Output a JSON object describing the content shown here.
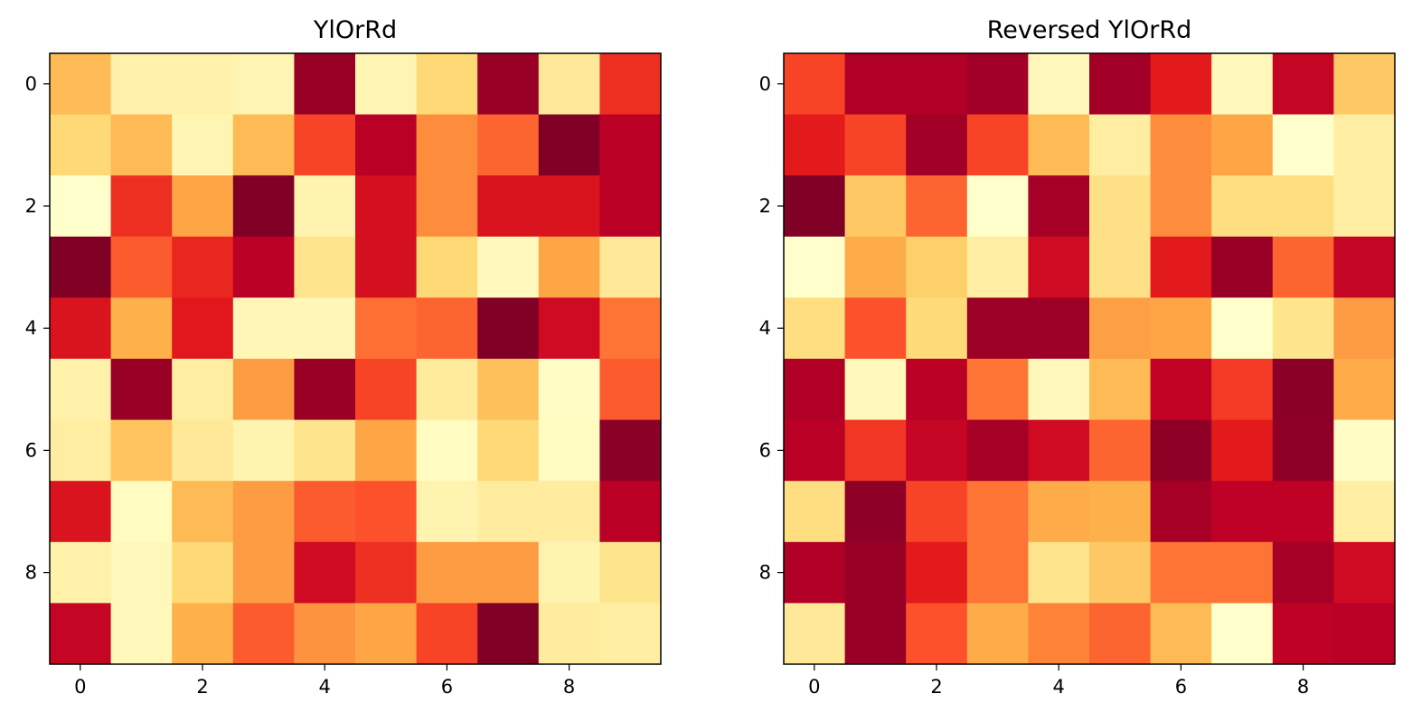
{
  "chart_data": [
    {
      "type": "heatmap",
      "title": "YlOrRd",
      "colormap": "YlOrRd",
      "xticks": [
        "0",
        "2",
        "4",
        "6",
        "8"
      ],
      "yticks": [
        "0",
        "2",
        "4",
        "6",
        "8"
      ],
      "values": [
        [
          0.35,
          0.1,
          0.1,
          0.07,
          0.95,
          0.07,
          0.25,
          0.95,
          0.15,
          0.7
        ],
        [
          0.25,
          0.35,
          0.07,
          0.35,
          0.65,
          0.88,
          0.5,
          0.58,
          1.0,
          0.88
        ],
        [
          0.0,
          0.7,
          0.42,
          1.0,
          0.08,
          0.8,
          0.5,
          0.78,
          0.78,
          0.88
        ],
        [
          1.0,
          0.6,
          0.72,
          0.88,
          0.18,
          0.8,
          0.25,
          0.05,
          0.42,
          0.15
        ],
        [
          0.78,
          0.38,
          0.76,
          0.06,
          0.06,
          0.56,
          0.58,
          1.0,
          0.82,
          0.55
        ],
        [
          0.1,
          0.95,
          0.12,
          0.45,
          0.95,
          0.65,
          0.14,
          0.33,
          0.02,
          0.6
        ],
        [
          0.12,
          0.32,
          0.15,
          0.08,
          0.18,
          0.42,
          0.03,
          0.25,
          0.03,
          0.98
        ],
        [
          0.78,
          0.03,
          0.35,
          0.45,
          0.6,
          0.62,
          0.08,
          0.13,
          0.13,
          0.88
        ],
        [
          0.1,
          0.05,
          0.25,
          0.45,
          0.82,
          0.7,
          0.45,
          0.45,
          0.08,
          0.18
        ],
        [
          0.85,
          0.05,
          0.38,
          0.6,
          0.48,
          0.42,
          0.65,
          1.0,
          0.13,
          0.12
        ]
      ]
    },
    {
      "type": "heatmap",
      "title": "Reversed YlOrRd",
      "colormap": "YlOrRd_r",
      "xticks": [
        "0",
        "2",
        "4",
        "6",
        "8"
      ],
      "yticks": [
        "0",
        "2",
        "4",
        "6",
        "8"
      ],
      "values": [
        [
          0.35,
          0.1,
          0.1,
          0.07,
          0.95,
          0.07,
          0.25,
          0.95,
          0.15,
          0.7
        ],
        [
          0.25,
          0.35,
          0.07,
          0.35,
          0.65,
          0.88,
          0.5,
          0.58,
          1.0,
          0.88
        ],
        [
          0.0,
          0.7,
          0.42,
          1.0,
          0.08,
          0.8,
          0.5,
          0.78,
          0.78,
          0.88
        ],
        [
          1.0,
          0.6,
          0.72,
          0.88,
          0.18,
          0.8,
          0.25,
          0.05,
          0.42,
          0.15
        ],
        [
          0.78,
          0.38,
          0.76,
          0.06,
          0.06,
          0.56,
          0.58,
          1.0,
          0.82,
          0.55
        ],
        [
          0.1,
          0.95,
          0.12,
          0.45,
          0.95,
          0.65,
          0.14,
          0.33,
          0.02,
          0.6
        ],
        [
          0.12,
          0.32,
          0.15,
          0.08,
          0.18,
          0.42,
          0.03,
          0.25,
          0.03,
          0.98
        ],
        [
          0.78,
          0.03,
          0.35,
          0.45,
          0.6,
          0.62,
          0.08,
          0.13,
          0.13,
          0.88
        ],
        [
          0.1,
          0.05,
          0.25,
          0.45,
          0.82,
          0.7,
          0.45,
          0.45,
          0.08,
          0.18
        ],
        [
          0.85,
          0.05,
          0.38,
          0.6,
          0.48,
          0.42,
          0.65,
          1.0,
          0.13,
          0.12
        ]
      ]
    }
  ]
}
